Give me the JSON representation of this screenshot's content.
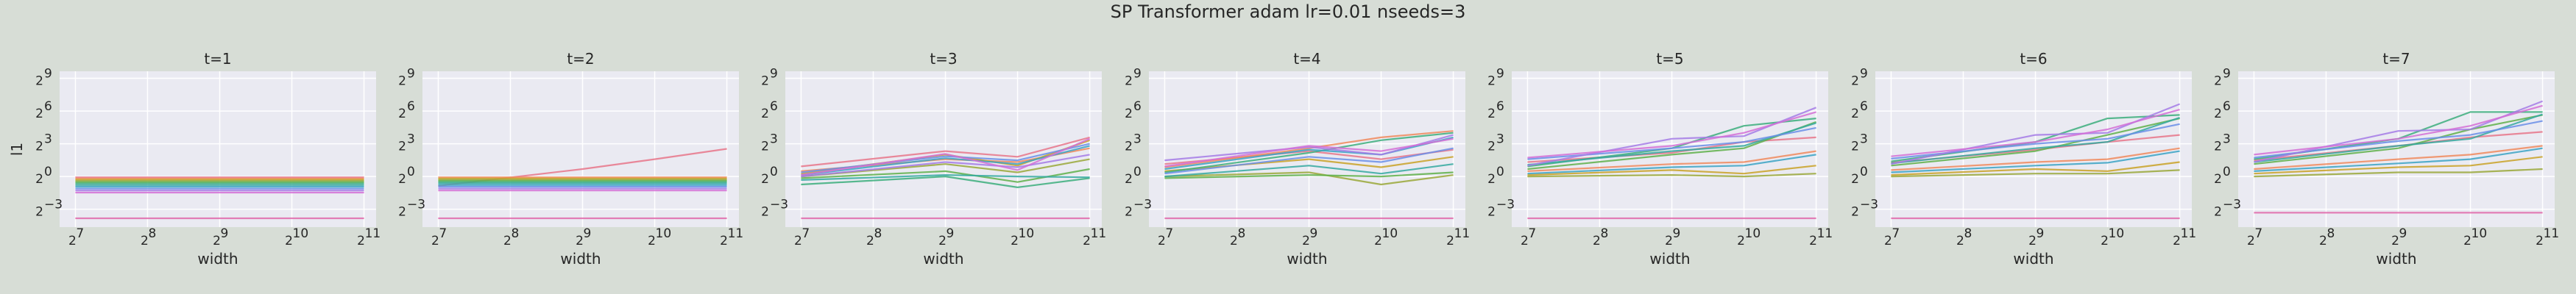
{
  "chart_data": {
    "type": "line",
    "title": "SP Transformer adam lr=0.01 nseeds=3",
    "xlabel": "width",
    "ylabel": "l1",
    "x": [
      128,
      512,
      1024,
      2048
    ],
    "xscale": "log2",
    "yscale": "log2",
    "xlim": [
      110,
      2300
    ],
    "ylim": [
      0.04,
      800
    ],
    "xticks": [
      128,
      256,
      512,
      1024,
      2048
    ],
    "xtick_labels": [
      "2",
      "2",
      "2",
      "2",
      "2"
    ],
    "xtick_exps": [
      "7",
      "8",
      "9",
      "10",
      "11"
    ],
    "yticks": [
      0.125,
      1,
      8,
      64,
      512
    ],
    "ytick_labels": [
      "2",
      "2",
      "2",
      "2",
      "2"
    ],
    "ytick_exps": [
      "−3",
      "0",
      "3",
      "6",
      "9"
    ],
    "grid": true,
    "series_colors": [
      "#e8758a",
      "#f08a5d",
      "#c9a227",
      "#9aa83a",
      "#5fb04a",
      "#3cae7c",
      "#35a9a0",
      "#3ba3c4",
      "#6a8ee8",
      "#a47be6",
      "#d46fd6",
      "#e06aab"
    ],
    "panels": [
      {
        "title": "t=1",
        "series": [
          {
            "values": [
              0.95,
              0.95,
              0.95,
              0.95
            ]
          },
          {
            "values": [
              0.88,
              0.88,
              0.88,
              0.88
            ]
          },
          {
            "values": [
              0.82,
              0.82,
              0.82,
              0.82
            ]
          },
          {
            "values": [
              0.76,
              0.76,
              0.76,
              0.76
            ]
          },
          {
            "values": [
              0.7,
              0.7,
              0.7,
              0.7
            ]
          },
          {
            "values": [
              0.64,
              0.64,
              0.64,
              0.64
            ]
          },
          {
            "values": [
              0.58,
              0.58,
              0.58,
              0.58
            ]
          },
          {
            "values": [
              0.52,
              0.52,
              0.52,
              0.52
            ]
          },
          {
            "values": [
              0.46,
              0.46,
              0.46,
              0.46
            ]
          },
          {
            "values": [
              0.41,
              0.41,
              0.41,
              0.41
            ]
          },
          {
            "values": [
              0.36,
              0.36,
              0.36,
              0.36
            ]
          },
          {
            "values": [
              0.07,
              0.07,
              0.07,
              0.07
            ]
          }
        ]
      },
      {
        "title": "t=2",
        "series": [
          {
            "values": [
              0.55,
              1.6,
              3.0,
              5.8
            ]
          },
          {
            "values": [
              0.95,
              0.95,
              0.95,
              0.95
            ]
          },
          {
            "values": [
              0.88,
              0.88,
              0.88,
              0.88
            ]
          },
          {
            "values": [
              0.82,
              0.82,
              0.82,
              0.82
            ]
          },
          {
            "values": [
              0.76,
              0.76,
              0.76,
              0.76
            ]
          },
          {
            "values": [
              0.7,
              0.7,
              0.7,
              0.7
            ]
          },
          {
            "values": [
              0.64,
              0.64,
              0.64,
              0.64
            ]
          },
          {
            "values": [
              0.58,
              0.58,
              0.58,
              0.58
            ]
          },
          {
            "values": [
              0.52,
              0.52,
              0.52,
              0.52
            ]
          },
          {
            "values": [
              0.46,
              0.46,
              0.46,
              0.46
            ]
          },
          {
            "values": [
              0.41,
              0.41,
              0.41,
              0.41
            ]
          },
          {
            "values": [
              0.07,
              0.07,
              0.07,
              0.07
            ]
          }
        ]
      },
      {
        "title": "t=3",
        "series": [
          {
            "values": [
              1.9,
              5.0,
              3.5,
              12.0
            ]
          },
          {
            "values": [
              1.4,
              3.0,
              2.5,
              6.0
            ]
          },
          {
            "values": [
              1.2,
              4.0,
              2.0,
              10.0
            ]
          },
          {
            "values": [
              1.0,
              2.2,
              1.3,
              3.0
            ]
          },
          {
            "values": [
              0.9,
              1.4,
              0.7,
              1.6
            ]
          },
          {
            "values": [
              0.6,
              1.0,
              0.5,
              0.9
            ]
          },
          {
            "values": [
              0.8,
              1.1,
              1.0,
              0.95
            ]
          },
          {
            "values": [
              1.1,
              3.2,
              2.2,
              7.0
            ]
          },
          {
            "values": [
              1.3,
              3.6,
              2.8,
              8.0
            ]
          },
          {
            "values": [
              1.0,
              2.5,
              1.8,
              4.0
            ]
          },
          {
            "values": [
              1.1,
              4.2,
              1.5,
              11.0
            ]
          },
          {
            "values": [
              0.07,
              0.07,
              0.07,
              0.07
            ]
          }
        ]
      },
      {
        "title": "t=4",
        "series": [
          {
            "values": [
              2.2,
              5.0,
              3.0,
              5.5
            ]
          },
          {
            "values": [
              1.8,
              6.0,
              12.0,
              18.0
            ]
          },
          {
            "values": [
              1.4,
              3.0,
              1.8,
              3.5
            ]
          },
          {
            "values": [
              1.0,
              1.3,
              0.6,
              1.1
            ]
          },
          {
            "values": [
              0.9,
              1.1,
              1.0,
              1.3
            ]
          },
          {
            "values": [
              1.3,
              4.5,
              10.0,
              16.0
            ]
          },
          {
            "values": [
              1.0,
              2.0,
              1.2,
              2.2
            ]
          },
          {
            "values": [
              1.6,
              5.5,
              4.0,
              12.0
            ]
          },
          {
            "values": [
              1.2,
              3.5,
              2.5,
              6.0
            ]
          },
          {
            "values": [
              2.8,
              6.5,
              4.0,
              14.0
            ]
          },
          {
            "values": [
              1.9,
              7.0,
              5.0,
              11.0
            ]
          },
          {
            "values": [
              0.07,
              0.07,
              0.07,
              0.07
            ]
          }
        ]
      },
      {
        "title": "t=5",
        "series": [
          {
            "values": [
              2.5,
              4.5,
              9.0,
              12.0
            ]
          },
          {
            "values": [
              1.4,
              2.2,
              2.5,
              5.0
            ]
          },
          {
            "values": [
              1.1,
              1.5,
              1.2,
              2.0
            ]
          },
          {
            "values": [
              1.0,
              1.1,
              1.0,
              1.2
            ]
          },
          {
            "values": [
              1.6,
              4.0,
              6.0,
              32.0
            ]
          },
          {
            "values": [
              1.9,
              6.0,
              25.0,
              40.0
            ]
          },
          {
            "values": [
              2.1,
              5.0,
              7.0,
              30.0
            ]
          },
          {
            "values": [
              1.2,
              1.8,
              2.0,
              4.0
            ]
          },
          {
            "values": [
              3.0,
              6.0,
              9.0,
              22.0
            ]
          },
          {
            "values": [
              2.0,
              11.0,
              13.0,
              80.0
            ]
          },
          {
            "values": [
              3.3,
              7.0,
              16.0,
              60.0
            ]
          },
          {
            "values": [
              0.07,
              0.07,
              0.07,
              0.07
            ]
          }
        ]
      },
      {
        "title": "t=6",
        "series": [
          {
            "values": [
              2.4,
              5.5,
              9.0,
              14.0
            ]
          },
          {
            "values": [
              1.5,
              2.5,
              3.0,
              6.0
            ]
          },
          {
            "values": [
              1.1,
              1.6,
              1.4,
              2.5
            ]
          },
          {
            "values": [
              1.0,
              1.2,
              1.2,
              1.5
            ]
          },
          {
            "values": [
              2.0,
              5.0,
              14.0,
              40.0
            ]
          },
          {
            "values": [
              2.6,
              9.0,
              40.0,
              50.0
            ]
          },
          {
            "values": [
              2.3,
              6.0,
              9.0,
              42.0
            ]
          },
          {
            "values": [
              1.3,
              2.0,
              2.4,
              5.0
            ]
          },
          {
            "values": [
              3.1,
              8.0,
              11.0,
              28.0
            ]
          },
          {
            "values": [
              2.2,
              14.0,
              16.0,
              100.0
            ]
          },
          {
            "values": [
              3.6,
              9.0,
              20.0,
              70.0
            ]
          },
          {
            "values": [
              0.07,
              0.07,
              0.07,
              0.07
            ]
          }
        ]
      },
      {
        "title": "t=7",
        "series": [
          {
            "values": [
              2.8,
              7.0,
              12.0,
              17.0
            ]
          },
          {
            "values": [
              1.6,
              3.0,
              4.0,
              7.0
            ]
          },
          {
            "values": [
              1.2,
              1.8,
              2.0,
              3.5
            ]
          },
          {
            "values": [
              1.0,
              1.3,
              1.3,
              1.6
            ]
          },
          {
            "values": [
              2.2,
              6.0,
              20.0,
              50.0
            ]
          },
          {
            "values": [
              3.0,
              11.0,
              60.0,
              60.0
            ]
          },
          {
            "values": [
              2.5,
              7.0,
              11.0,
              52.0
            ]
          },
          {
            "values": [
              1.4,
              2.3,
              3.0,
              6.0
            ]
          },
          {
            "values": [
              3.3,
              9.5,
              14.0,
              34.0
            ]
          },
          {
            "values": [
              2.5,
              18.0,
              20.0,
              120.0
            ]
          },
          {
            "values": [
              4.0,
              11.0,
              25.0,
              90.0
            ]
          },
          {
            "values": [
              0.1,
              0.1,
              0.1,
              0.1
            ]
          }
        ]
      }
    ]
  }
}
